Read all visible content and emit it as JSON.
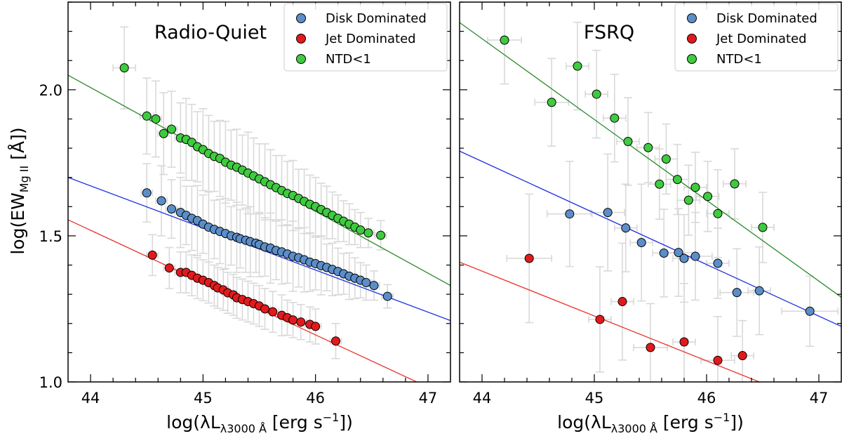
{
  "figure": {
    "ylabel": {
      "main": "log(EW",
      "sub": "Mg II",
      "tail": " [Å])"
    },
    "xlabel": {
      "main": "log(λL",
      "sub": "λ3000 Å",
      "tail": " [erg s",
      "sup": "−1",
      "end": "])"
    }
  },
  "colors": {
    "disk": "#5b8ec9",
    "jet": "#e31a1c",
    "ntd": "#3ecb3e",
    "disk_line": "#1f2fe0",
    "jet_line": "#e8332e",
    "ntd_line": "#2a8a2a",
    "errorbar": "#d9d9d9"
  },
  "chart_data": [
    {
      "type": "scatter",
      "panel_label": "Radio-Quiet",
      "xlim": [
        43.8,
        47.2
      ],
      "ylim": [
        1.0,
        2.3
      ],
      "xticks": [
        "44",
        "45",
        "46",
        "47"
      ],
      "yticks": [
        "1.0",
        "1.5",
        "2.0"
      ],
      "legend_position": "top-right",
      "series": [
        {
          "name": "Disk Dominated",
          "color_key": "disk",
          "fit": {
            "x": [
              43.8,
              47.2
            ],
            "y": [
              1.7,
              1.21
            ]
          },
          "x": [
            44.5,
            44.63,
            44.72,
            44.8,
            44.85,
            44.9,
            44.95,
            45.0,
            45.05,
            45.1,
            45.15,
            45.2,
            45.25,
            45.3,
            45.33,
            45.38,
            45.42,
            45.47,
            45.5,
            45.55,
            45.6,
            45.65,
            45.7,
            45.75,
            45.8,
            45.85,
            45.9,
            45.95,
            46.0,
            46.05,
            46.1,
            46.15,
            46.2,
            46.25,
            46.3,
            46.35,
            46.4,
            46.45,
            46.52,
            46.64
          ],
          "y": [
            1.647,
            1.62,
            1.592,
            1.58,
            1.57,
            1.56,
            1.552,
            1.54,
            1.53,
            1.522,
            1.515,
            1.508,
            1.5,
            1.495,
            1.49,
            1.485,
            1.48,
            1.475,
            1.47,
            1.462,
            1.458,
            1.45,
            1.445,
            1.438,
            1.43,
            1.425,
            1.418,
            1.41,
            1.405,
            1.398,
            1.392,
            1.385,
            1.378,
            1.37,
            1.362,
            1.355,
            1.348,
            1.34,
            1.33,
            1.293
          ],
          "yerr": [
            0.1,
            0.12,
            0.1,
            0.12,
            0.1,
            0.11,
            0.12,
            0.1,
            0.12,
            0.1,
            0.11,
            0.12,
            0.1,
            0.12,
            0.1,
            0.11,
            0.12,
            0.1,
            0.11,
            0.1,
            0.12,
            0.1,
            0.11,
            0.1,
            0.12,
            0.1,
            0.11,
            0.1,
            0.09,
            0.1,
            0.08,
            0.09,
            0.08,
            0.07,
            0.08,
            0.07,
            0.06,
            0.06,
            0.05,
            0.04
          ],
          "xerr": [
            0.05,
            0.05,
            0.05,
            0.05,
            0.05,
            0.05,
            0.05,
            0.05,
            0.05,
            0.05,
            0.05,
            0.05,
            0.05,
            0.05,
            0.05,
            0.05,
            0.05,
            0.05,
            0.05,
            0.05,
            0.05,
            0.05,
            0.05,
            0.05,
            0.05,
            0.05,
            0.05,
            0.05,
            0.05,
            0.05,
            0.05,
            0.05,
            0.05,
            0.05,
            0.05,
            0.05,
            0.05,
            0.05,
            0.05,
            0.05
          ]
        },
        {
          "name": "Jet Dominated",
          "color_key": "jet",
          "fit": {
            "x": [
              43.8,
              46.9
            ],
            "y": [
              1.555,
              1.0
            ]
          },
          "x": [
            44.55,
            44.7,
            44.8,
            44.85,
            44.9,
            44.95,
            45.0,
            45.05,
            45.1,
            45.13,
            45.18,
            45.22,
            45.27,
            45.3,
            45.35,
            45.4,
            45.45,
            45.5,
            45.55,
            45.62,
            45.7,
            45.75,
            45.8,
            45.87,
            45.95,
            46.0,
            46.18
          ],
          "y": [
            1.434,
            1.39,
            1.375,
            1.375,
            1.365,
            1.355,
            1.348,
            1.34,
            1.33,
            1.322,
            1.315,
            1.305,
            1.298,
            1.288,
            1.282,
            1.275,
            1.268,
            1.26,
            1.25,
            1.24,
            1.228,
            1.22,
            1.212,
            1.205,
            1.197,
            1.19,
            1.14
          ],
          "yerr": [
            0.07,
            0.07,
            0.07,
            0.07,
            0.07,
            0.07,
            0.07,
            0.07,
            0.07,
            0.07,
            0.07,
            0.07,
            0.07,
            0.07,
            0.07,
            0.07,
            0.07,
            0.07,
            0.07,
            0.07,
            0.07,
            0.06,
            0.06,
            0.06,
            0.06,
            0.06,
            0.06
          ],
          "xerr": [
            0.05,
            0.05,
            0.05,
            0.05,
            0.05,
            0.05,
            0.05,
            0.05,
            0.05,
            0.05,
            0.05,
            0.05,
            0.05,
            0.05,
            0.05,
            0.05,
            0.05,
            0.05,
            0.05,
            0.05,
            0.05,
            0.05,
            0.05,
            0.05,
            0.05,
            0.05,
            0.05
          ]
        },
        {
          "name": "NTD<1",
          "color_key": "ntd",
          "fit": {
            "x": [
              43.8,
              47.2
            ],
            "y": [
              2.05,
              1.33
            ]
          },
          "x": [
            44.3,
            44.5,
            44.58,
            44.65,
            44.72,
            44.8,
            44.85,
            44.9,
            44.95,
            45.0,
            45.05,
            45.1,
            45.15,
            45.2,
            45.25,
            45.3,
            45.35,
            45.4,
            45.45,
            45.5,
            45.55,
            45.6,
            45.65,
            45.7,
            45.75,
            45.8,
            45.85,
            45.9,
            45.95,
            46.0,
            46.05,
            46.1,
            46.15,
            46.2,
            46.25,
            46.3,
            46.35,
            46.4,
            46.47,
            46.58
          ],
          "y": [
            2.075,
            1.91,
            1.9,
            1.85,
            1.865,
            1.835,
            1.83,
            1.82,
            1.805,
            1.795,
            1.782,
            1.772,
            1.765,
            1.752,
            1.742,
            1.735,
            1.725,
            1.715,
            1.705,
            1.695,
            1.685,
            1.675,
            1.665,
            1.655,
            1.645,
            1.638,
            1.628,
            1.618,
            1.608,
            1.6,
            1.59,
            1.58,
            1.57,
            1.56,
            1.55,
            1.54,
            1.53,
            1.52,
            1.51,
            1.502
          ],
          "yerr": [
            0.14,
            0.13,
            0.13,
            0.14,
            0.13,
            0.12,
            0.14,
            0.13,
            0.12,
            0.14,
            0.13,
            0.12,
            0.13,
            0.14,
            0.12,
            0.13,
            0.12,
            0.14,
            0.13,
            0.12,
            0.13,
            0.12,
            0.11,
            0.12,
            0.11,
            0.12,
            0.1,
            0.11,
            0.1,
            0.1,
            0.09,
            0.09,
            0.08,
            0.08,
            0.07,
            0.07,
            0.06,
            0.06,
            0.05,
            0.05
          ],
          "xerr": [
            0.1,
            0.06,
            0.05,
            0.05,
            0.05,
            0.05,
            0.05,
            0.05,
            0.05,
            0.05,
            0.05,
            0.05,
            0.05,
            0.05,
            0.05,
            0.05,
            0.05,
            0.05,
            0.05,
            0.05,
            0.05,
            0.05,
            0.05,
            0.05,
            0.05,
            0.05,
            0.05,
            0.05,
            0.05,
            0.05,
            0.05,
            0.05,
            0.05,
            0.05,
            0.05,
            0.05,
            0.05,
            0.05,
            0.05,
            0.05
          ]
        }
      ]
    },
    {
      "type": "scatter",
      "panel_label": "FSRQ",
      "xlim": [
        43.8,
        47.2
      ],
      "ylim": [
        1.0,
        2.3
      ],
      "xticks": [
        "44",
        "45",
        "46",
        "47"
      ],
      "yticks": [
        "1.0",
        "1.5",
        "2.0"
      ],
      "legend_position": "top-right",
      "series": [
        {
          "name": "Disk Dominated",
          "color_key": "disk",
          "fit": {
            "x": [
              43.8,
              47.2
            ],
            "y": [
              1.79,
              1.19
            ]
          },
          "x": [
            44.78,
            45.12,
            45.28,
            45.42,
            45.62,
            45.75,
            45.8,
            45.9,
            46.1,
            46.27,
            46.47,
            46.92
          ],
          "y": [
            1.575,
            1.58,
            1.527,
            1.477,
            1.441,
            1.443,
            1.423,
            1.43,
            1.406,
            1.306,
            1.312,
            1.242
          ],
          "yerr": [
            0.18,
            0.2,
            0.15,
            0.2,
            0.15,
            0.15,
            0.15,
            0.15,
            0.12,
            0.15,
            0.15,
            0.12
          ],
          "xerr": [
            0.2,
            0.15,
            0.1,
            0.1,
            0.1,
            0.15,
            0.1,
            0.15,
            0.1,
            0.15,
            0.1,
            0.25
          ]
        },
        {
          "name": "Jet Dominated",
          "color_key": "jet",
          "fit": {
            "x": [
              43.8,
              46.47
            ],
            "y": [
              1.41,
              1.0
            ]
          },
          "x": [
            44.42,
            45.05,
            45.25,
            45.5,
            45.8,
            46.1,
            46.32
          ],
          "y": [
            1.423,
            1.214,
            1.275,
            1.118,
            1.137,
            1.074,
            1.09
          ],
          "yerr": [
            0.22,
            0.18,
            0.2,
            0.15,
            0.2,
            0.15,
            0.12
          ],
          "xerr": [
            0.2,
            0.1,
            0.1,
            0.15,
            0.1,
            0.15,
            0.1
          ]
        },
        {
          "name": "NTD<1",
          "color_key": "ntd",
          "fit": {
            "x": [
              43.8,
              47.2
            ],
            "y": [
              2.23,
              1.29
            ]
          },
          "x": [
            44.2,
            44.62,
            44.85,
            45.02,
            45.18,
            45.3,
            45.48,
            45.58,
            45.64,
            45.74,
            45.84,
            45.9,
            46.01,
            46.1,
            46.25,
            46.5
          ],
          "y": [
            2.17,
            1.957,
            2.081,
            1.985,
            1.903,
            1.823,
            1.802,
            1.677,
            1.763,
            1.693,
            1.622,
            1.666,
            1.635,
            1.576,
            1.678,
            1.529
          ],
          "yerr": [
            0.15,
            0.15,
            0.15,
            0.15,
            0.15,
            0.15,
            0.12,
            0.12,
            0.12,
            0.12,
            0.12,
            0.12,
            0.12,
            0.15,
            0.12,
            0.12
          ],
          "xerr": [
            0.15,
            0.15,
            0.1,
            0.1,
            0.1,
            0.1,
            0.1,
            0.1,
            0.1,
            0.1,
            0.1,
            0.1,
            0.1,
            0.1,
            0.1,
            0.1
          ]
        }
      ]
    }
  ]
}
